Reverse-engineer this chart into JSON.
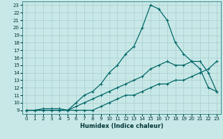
{
  "xlabel": "Humidex (Indice chaleur)",
  "bg_color": "#c8e8e8",
  "grid_color": "#aacccc",
  "line_color": "#006666",
  "xlim": [
    -0.5,
    23.5
  ],
  "ylim": [
    8.5,
    23.5
  ],
  "xticks": [
    0,
    1,
    2,
    3,
    4,
    5,
    6,
    7,
    8,
    9,
    10,
    11,
    12,
    13,
    14,
    15,
    16,
    17,
    18,
    19,
    20,
    21,
    22,
    23
  ],
  "yticks": [
    9,
    10,
    11,
    12,
    13,
    14,
    15,
    16,
    17,
    18,
    19,
    20,
    21,
    22,
    23
  ],
  "line1_x": [
    0,
    1,
    2,
    3,
    4,
    5,
    6,
    7,
    8,
    9,
    10,
    11,
    12,
    13,
    14,
    15,
    16,
    17,
    18,
    19,
    20,
    21,
    22,
    23
  ],
  "line1_y": [
    9.0,
    9.0,
    9.0,
    9.0,
    9.0,
    9.0,
    9.0,
    9.0,
    9.0,
    9.5,
    10.0,
    10.5,
    11.0,
    11.0,
    11.5,
    12.0,
    12.5,
    12.5,
    13.0,
    13.0,
    13.5,
    14.0,
    14.5,
    15.5
  ],
  "line2_x": [
    0,
    1,
    2,
    3,
    4,
    5,
    6,
    7,
    8,
    9,
    10,
    11,
    12,
    13,
    14,
    15,
    16,
    17,
    18,
    19,
    20,
    21,
    22,
    23
  ],
  "line2_y": [
    9.0,
    9.0,
    9.0,
    9.0,
    9.0,
    9.0,
    9.5,
    10.0,
    10.5,
    11.0,
    11.5,
    12.0,
    12.5,
    13.0,
    13.5,
    14.5,
    15.0,
    15.5,
    15.0,
    15.0,
    15.5,
    15.5,
    14.0,
    11.5
  ],
  "line3_x": [
    0,
    1,
    2,
    3,
    4,
    5,
    6,
    7,
    8,
    9,
    10,
    11,
    12,
    13,
    14,
    15,
    16,
    17,
    18,
    19,
    20,
    21,
    22,
    23
  ],
  "line3_y": [
    9.0,
    9.0,
    9.2,
    9.2,
    9.2,
    9.0,
    10.0,
    11.0,
    11.5,
    12.5,
    14.0,
    15.0,
    16.5,
    17.5,
    20.0,
    23.0,
    22.5,
    21.0,
    18.0,
    16.5,
    15.5,
    14.5,
    12.0,
    11.5
  ]
}
